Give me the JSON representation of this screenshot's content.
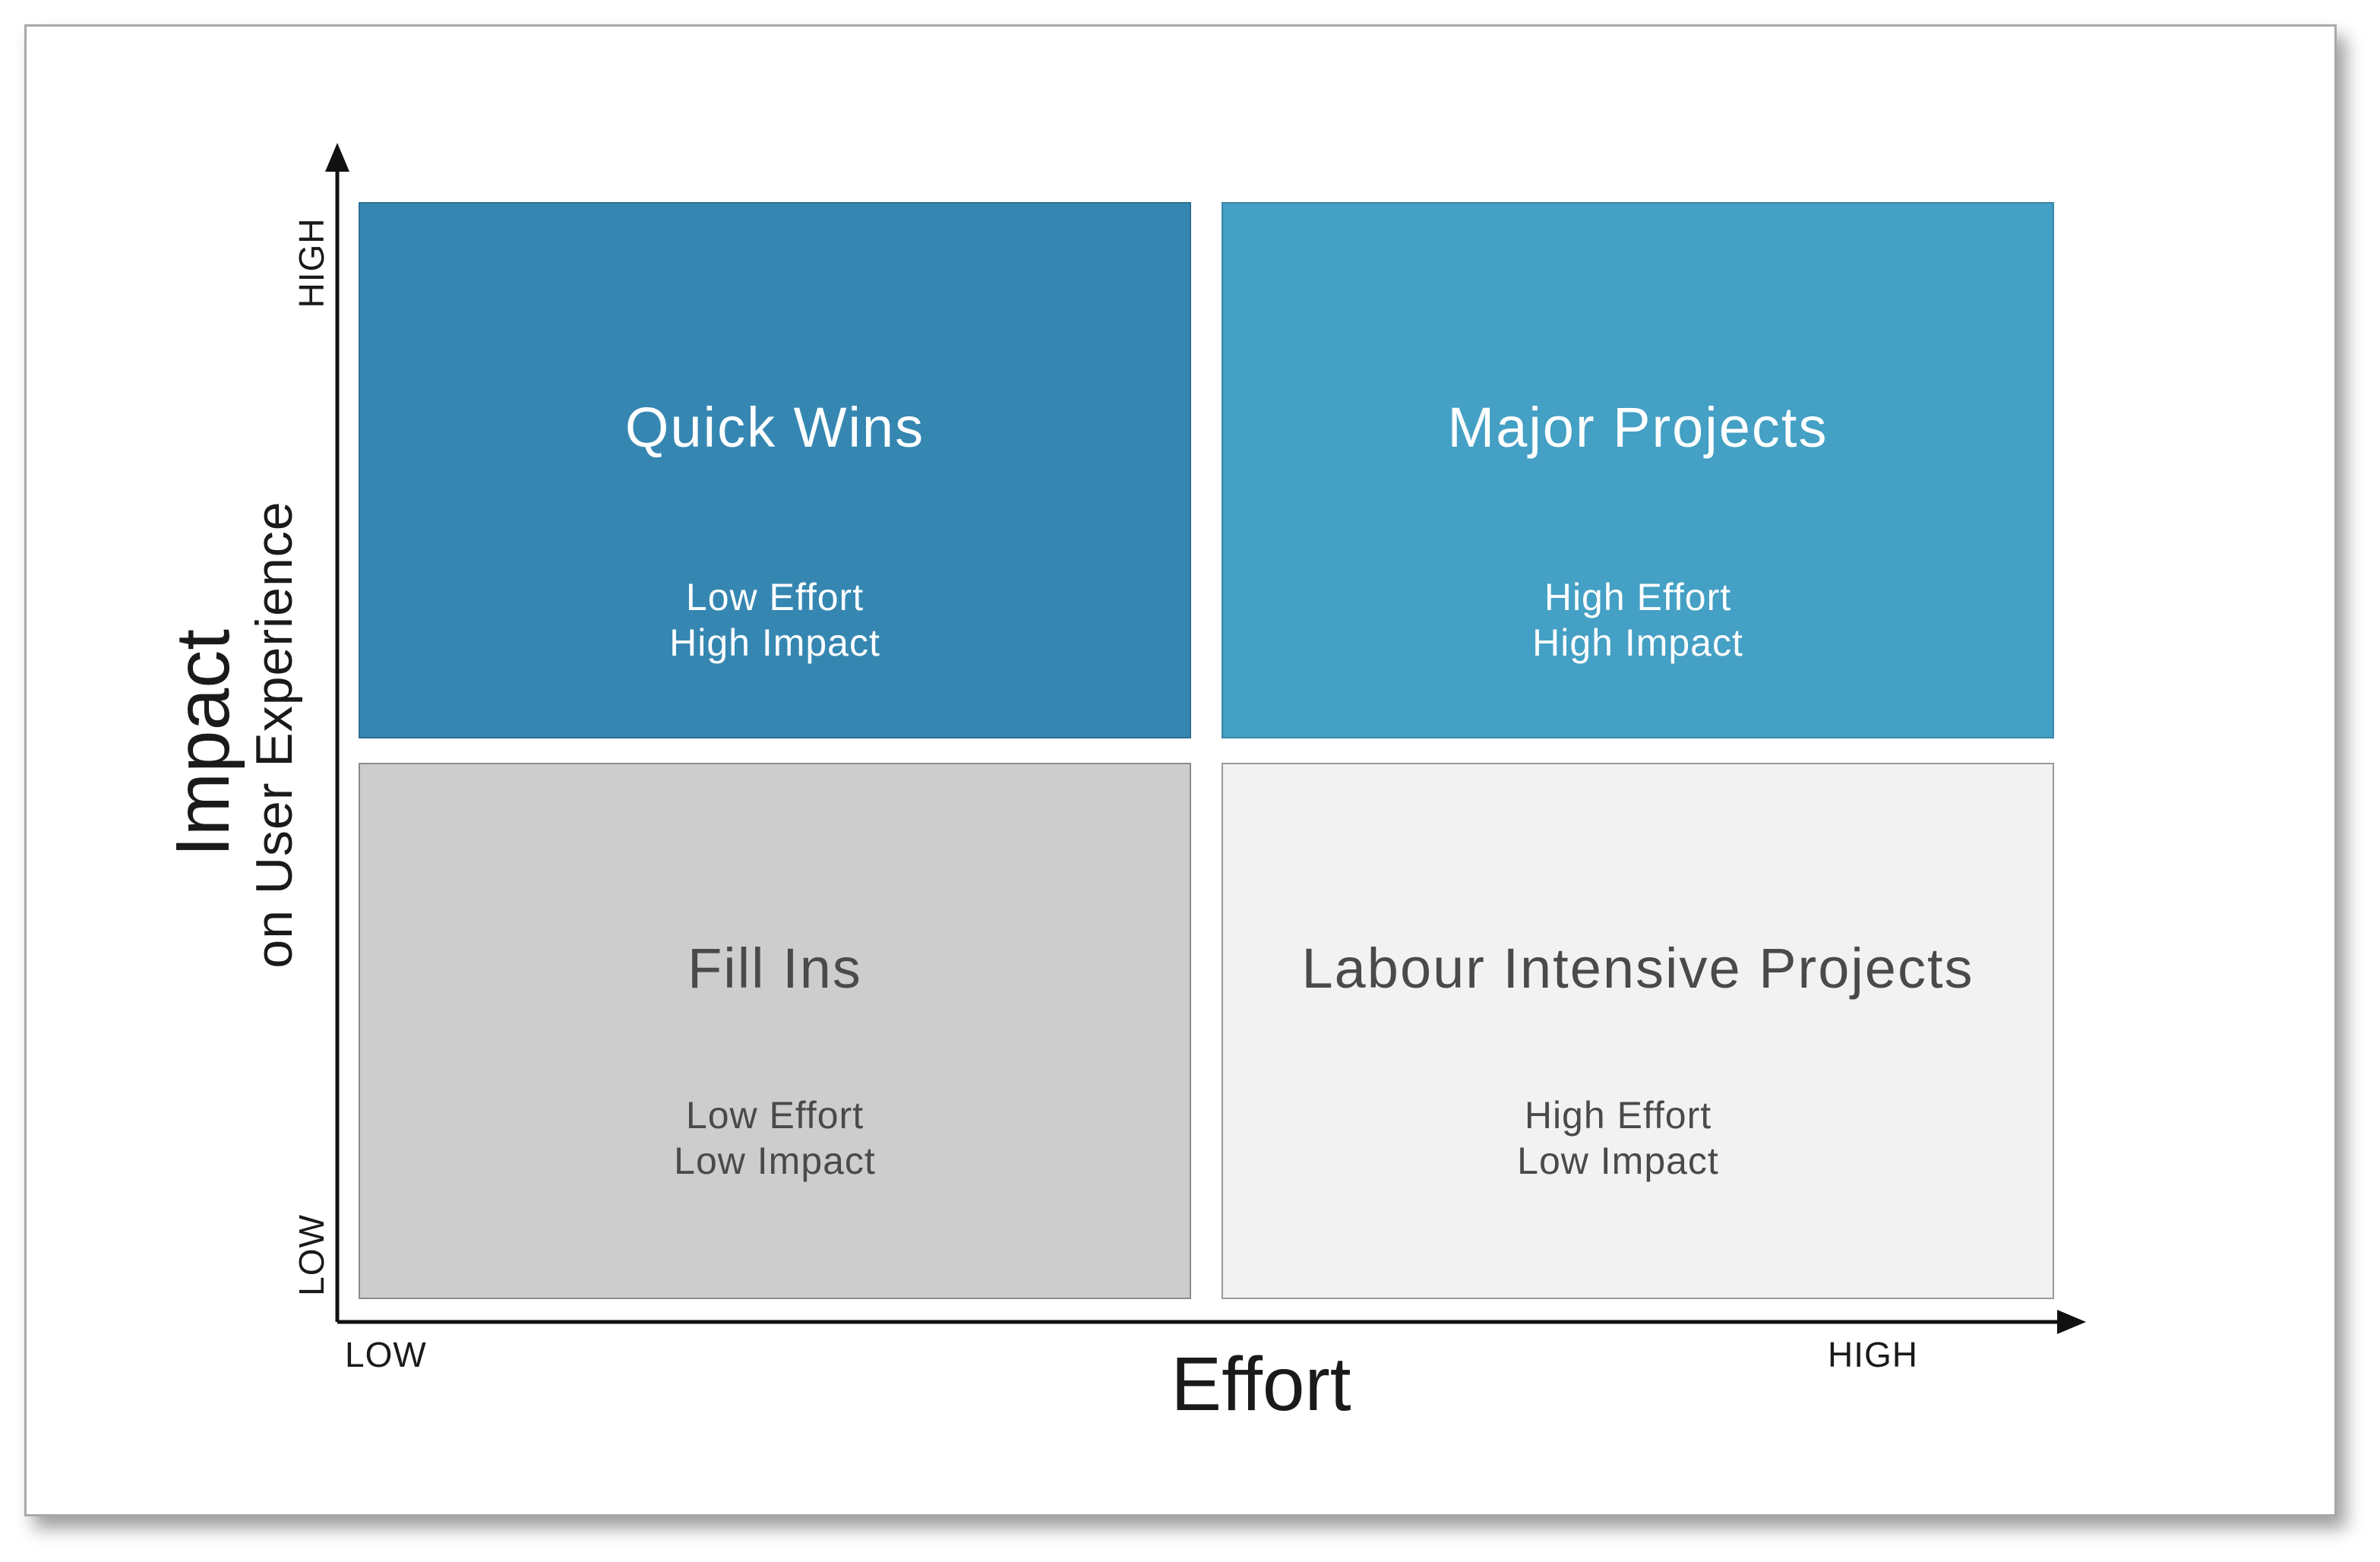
{
  "diagram": {
    "x_axis": {
      "title": "Effort",
      "low_label": "LOW",
      "high_label": "HIGH"
    },
    "y_axis": {
      "title": "Impact",
      "subtitle": "on User Experience",
      "low_label": "LOW",
      "high_label": "HIGH"
    },
    "quadrants": {
      "quick_wins": {
        "title": "Quick Wins",
        "line1": "Low Effort",
        "line2": "High Impact",
        "color": "#3587b2"
      },
      "major_projects": {
        "title": "Major Projects",
        "line1": "High Effort",
        "line2": "High Impact",
        "color": "#44a0c4"
      },
      "fill_ins": {
        "title": "Fill Ins",
        "line1": "Low Effort",
        "line2": "Low Impact",
        "color": "#cdcdcd"
      },
      "labour_intensive": {
        "title": "Labour Intensive Projects",
        "line1": "High Effort",
        "line2": "Low Impact",
        "color": "#f2f2f2"
      }
    }
  }
}
